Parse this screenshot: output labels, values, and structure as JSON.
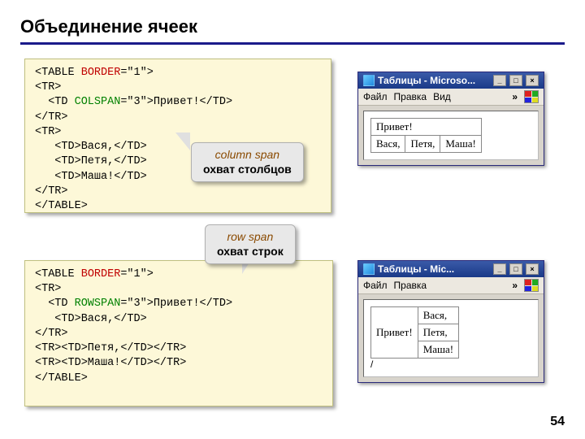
{
  "title": "Объединение ячеек",
  "page_number": "54",
  "code1": {
    "l1a": "<TABLE ",
    "l1b": "BORDER",
    "l1c": "=\"1\">",
    "l2": "<TR>",
    "l3a": "  <TD ",
    "l3b": "COLSPAN",
    "l3c": "=\"3\">Привет!</TD>",
    "l4": "</TR>",
    "l5": "<TR>",
    "l6": "   <TD>Вася,</TD>",
    "l7": "   <TD>Петя,</TD>",
    "l8": "   <TD>Маша!</TD>",
    "l9": "</TR>",
    "l10": "</TABLE>"
  },
  "code2": {
    "l1a": "<TABLE ",
    "l1b": "BORDER",
    "l1c": "=\"1\">",
    "l2": "<TR>",
    "l3a": "  <TD ",
    "l3b": "ROWSPAN",
    "l3c": "=\"3\">Привет!</TD>",
    "l4": "   <TD>Вася,</TD>",
    "l5": "</TR>",
    "l6": "<TR><TD>Петя,</TD></TR>",
    "l7": "<TR><TD>Маша!</TD></TR>",
    "l8": "</TABLE>"
  },
  "callout1": {
    "line1": "column span",
    "line2": "охват столбцов"
  },
  "callout2": {
    "line1": "row span",
    "line2": "охват строк"
  },
  "browser1": {
    "title": "Таблицы - Microso...",
    "menu": {
      "file": "Файл",
      "edit": "Правка",
      "view": "Вид"
    },
    "chev": "»",
    "table": {
      "r1c1": "Привет!",
      "r2c1": "Вася,",
      "r2c2": "Петя,",
      "r2c3": "Маша!"
    }
  },
  "browser2": {
    "title": "Таблицы - Mic...",
    "menu": {
      "file": "Файл",
      "edit": "Правка"
    },
    "chev": "»",
    "table": {
      "c1": "Привет!",
      "r1": "Вася,",
      "r2": "Петя,",
      "r3": "Маша!"
    }
  },
  "winbtn": {
    "min": "_",
    "max": "□",
    "close": "×"
  }
}
